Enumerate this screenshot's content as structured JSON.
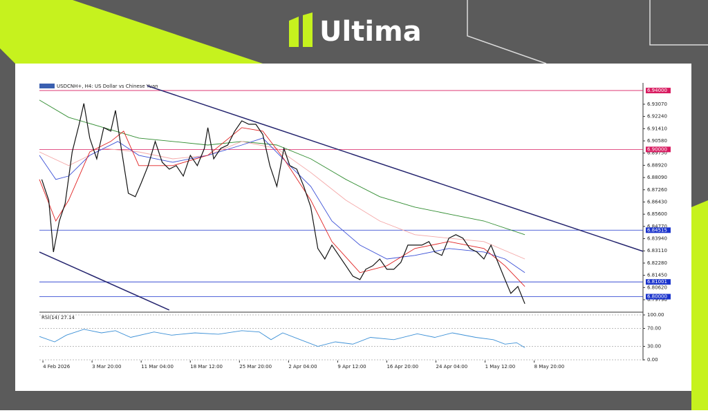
{
  "brand": "Ultima",
  "chart_data": [
    {
      "type": "line",
      "title": "USDCNH+, H4: US Dollar vs Chinese Yuan",
      "xlim": [
        -3,
        513
      ],
      "ylim": [
        6.7904,
        6.9452
      ],
      "yticks": [
        {
          "value": 6.9307,
          "label": "6.93070"
        },
        {
          "value": 6.9224,
          "label": "6.92240"
        },
        {
          "value": 6.9141,
          "label": "6.91410"
        },
        {
          "value": 6.9058,
          "label": "6.90580"
        },
        {
          "value": 6.8975,
          "label": "6.89750"
        },
        {
          "value": 6.8892,
          "label": "6.88920"
        },
        {
          "value": 6.8809,
          "label": "6.88090"
        },
        {
          "value": 6.8726,
          "label": "6.87260"
        },
        {
          "value": 6.8643,
          "label": "6.86430"
        },
        {
          "value": 6.856,
          "label": "6.85600"
        },
        {
          "value": 6.8477,
          "label": "6.84770"
        },
        {
          "value": 6.8394,
          "label": "6.83940"
        },
        {
          "value": 6.8311,
          "label": "6.83110"
        },
        {
          "value": 6.8228,
          "label": "6.82280"
        },
        {
          "value": 6.8145,
          "label": "6.81450"
        },
        {
          "value": 6.8062,
          "label": "6.80620"
        },
        {
          "value": 6.7979,
          "label": "6.79790"
        }
      ],
      "levels": [
        {
          "value": 6.94,
          "label": "6.94000",
          "color": "#d81b60"
        },
        {
          "value": 6.9,
          "label": "6.90000",
          "color": "#d81b60"
        },
        {
          "value": 6.84515,
          "label": "6.84515",
          "color": "#1a33cc"
        },
        {
          "value": 6.81001,
          "label": "6.81001",
          "color": "#1a33cc"
        },
        {
          "value": 6.8,
          "label": "6.80000",
          "color": "#1a33cc"
        }
      ],
      "trendlines": [
        {
          "x": [
            89,
            513
          ],
          "y": [
            6.9433,
            6.8308
          ],
          "color": "#24246e"
        },
        {
          "x": [
            -3,
            108
          ],
          "y": [
            6.8303,
            6.7909
          ],
          "color": "#24246e"
        }
      ],
      "series": [
        {
          "color": "#2e8b2e",
          "x": [
            -3,
            22,
            52,
            82,
            111,
            141,
            170,
            200,
            229,
            259,
            288,
            318,
            347,
            377,
            412
          ],
          "values": [
            6.9335,
            6.9218,
            6.9148,
            6.9077,
            6.9054,
            6.903,
            6.9054,
            6.903,
            6.8936,
            6.8796,
            6.8679,
            6.8608,
            6.8561,
            6.8514,
            6.8421
          ]
        },
        {
          "color": "#f4a6a6",
          "x": [
            -3,
            22,
            52,
            82,
            111,
            141,
            170,
            200,
            229,
            259,
            288,
            318,
            347,
            377,
            412
          ],
          "values": [
            6.8983,
            6.889,
            6.9007,
            6.8983,
            6.8936,
            6.896,
            6.9054,
            6.9007,
            6.8843,
            6.8655,
            6.8514,
            6.8421,
            6.8397,
            6.8374,
            6.8256
          ]
        },
        {
          "color": "#3a4fd6",
          "x": [
            -3,
            11,
            22,
            40,
            64,
            82,
            111,
            141,
            170,
            188,
            211,
            229,
            247,
            271,
            294,
            318,
            347,
            377,
            395,
            412
          ],
          "values": [
            6.896,
            6.8796,
            6.8819,
            6.896,
            6.9054,
            6.896,
            6.8913,
            6.896,
            6.903,
            6.9077,
            6.889,
            6.8749,
            6.8514,
            6.835,
            6.8256,
            6.828,
            6.8327,
            6.8303,
            6.8256,
            6.8163
          ]
        },
        {
          "color": "#e02020",
          "x": [
            -3,
            11,
            22,
            40,
            58,
            69,
            82,
            111,
            141,
            170,
            188,
            206,
            229,
            247,
            271,
            294,
            318,
            347,
            377,
            395,
            412
          ],
          "values": [
            6.8796,
            6.8514,
            6.8655,
            6.8983,
            6.9054,
            6.9124,
            6.889,
            6.889,
            6.896,
            6.9148,
            6.9124,
            6.8936,
            6.8655,
            6.8374,
            6.8163,
            6.821,
            6.8327,
            6.8374,
            6.8327,
            6.821,
            6.8069
          ]
        },
        {
          "color": "#111111",
          "x": [
            -1,
            5,
            9,
            14,
            19,
            25,
            31,
            35,
            40,
            46,
            52,
            58,
            62,
            67,
            73,
            79,
            84,
            90,
            96,
            102,
            108,
            114,
            120,
            126,
            132,
            138,
            141,
            146,
            152,
            158,
            164,
            170,
            176,
            182,
            188,
            194,
            200,
            206,
            211,
            217,
            223,
            229,
            235,
            241,
            247,
            253,
            259,
            265,
            271,
            276,
            282,
            288,
            294,
            300,
            306,
            312,
            318,
            324,
            330,
            335,
            341,
            347,
            353,
            359,
            365,
            371,
            377,
            383,
            389,
            395,
            400,
            406,
            412
          ],
          "values": [
            6.8796,
            6.8655,
            6.8303,
            6.8514,
            6.8632,
            6.8983,
            6.9171,
            6.9312,
            6.9077,
            6.8936,
            6.9148,
            6.9124,
            6.9265,
            6.9007,
            6.8702,
            6.8679,
            6.8772,
            6.889,
            6.9054,
            6.8913,
            6.8866,
            6.889,
            6.8819,
            6.896,
            6.889,
            6.9007,
            6.9148,
            6.8936,
            6.9007,
            6.903,
            6.9124,
            6.9194,
            6.9171,
            6.9171,
            6.9101,
            6.889,
            6.8749,
            6.9007,
            6.889,
            6.8866,
            6.8749,
            6.8608,
            6.8327,
            6.8256,
            6.835,
            6.828,
            6.821,
            6.8139,
            6.8116,
            6.8186,
            6.821,
            6.8256,
            6.8186,
            6.8186,
            6.8233,
            6.835,
            6.835,
            6.835,
            6.8374,
            6.8303,
            6.828,
            6.8397,
            6.8421,
            6.8397,
            6.8327,
            6.8303,
            6.8256,
            6.835,
            6.8233,
            6.8116,
            6.8022,
            6.8069,
            6.7952
          ]
        }
      ]
    },
    {
      "type": "line",
      "title": "RSI(14) 27.14",
      "xlim": [
        -3,
        513
      ],
      "ylim": [
        0,
        100
      ],
      "yticks": [
        {
          "value": 100,
          "label": "100.00"
        },
        {
          "value": 70,
          "label": "70.00"
        },
        {
          "value": 30,
          "label": "30.00"
        },
        {
          "value": 0,
          "label": "0.00"
        }
      ],
      "xticks": [
        {
          "value": 0,
          "label": "4 Feb 2026"
        },
        {
          "value": 42,
          "label": "3 Mar 20:00"
        },
        {
          "value": 84,
          "label": "11 Mar 04:00"
        },
        {
          "value": 126,
          "label": "18 Mar 12:00"
        },
        {
          "value": 168,
          "label": "25 Mar 20:00"
        },
        {
          "value": 210,
          "label": "2 Apr 04:00"
        },
        {
          "value": 252,
          "label": "9 Apr 12:00"
        },
        {
          "value": 294,
          "label": "16 Apr 20:00"
        },
        {
          "value": 336,
          "label": "24 Apr 04:00"
        },
        {
          "value": 378,
          "label": "1 May 12:00"
        },
        {
          "value": 420,
          "label": "8 May 20:00"
        }
      ],
      "series": [
        {
          "color": "#3a8fd6",
          "x": [
            -3,
            10,
            20,
            35,
            50,
            62,
            75,
            95,
            110,
            130,
            150,
            170,
            185,
            195,
            205,
            220,
            235,
            250,
            265,
            280,
            300,
            320,
            335,
            350,
            370,
            385,
            395,
            405,
            412
          ],
          "values": [
            52,
            40,
            55,
            68,
            60,
            65,
            50,
            62,
            55,
            60,
            57,
            65,
            62,
            45,
            60,
            45,
            30,
            40,
            35,
            50,
            45,
            58,
            50,
            60,
            50,
            45,
            35,
            38,
            27.14
          ]
        }
      ]
    }
  ]
}
